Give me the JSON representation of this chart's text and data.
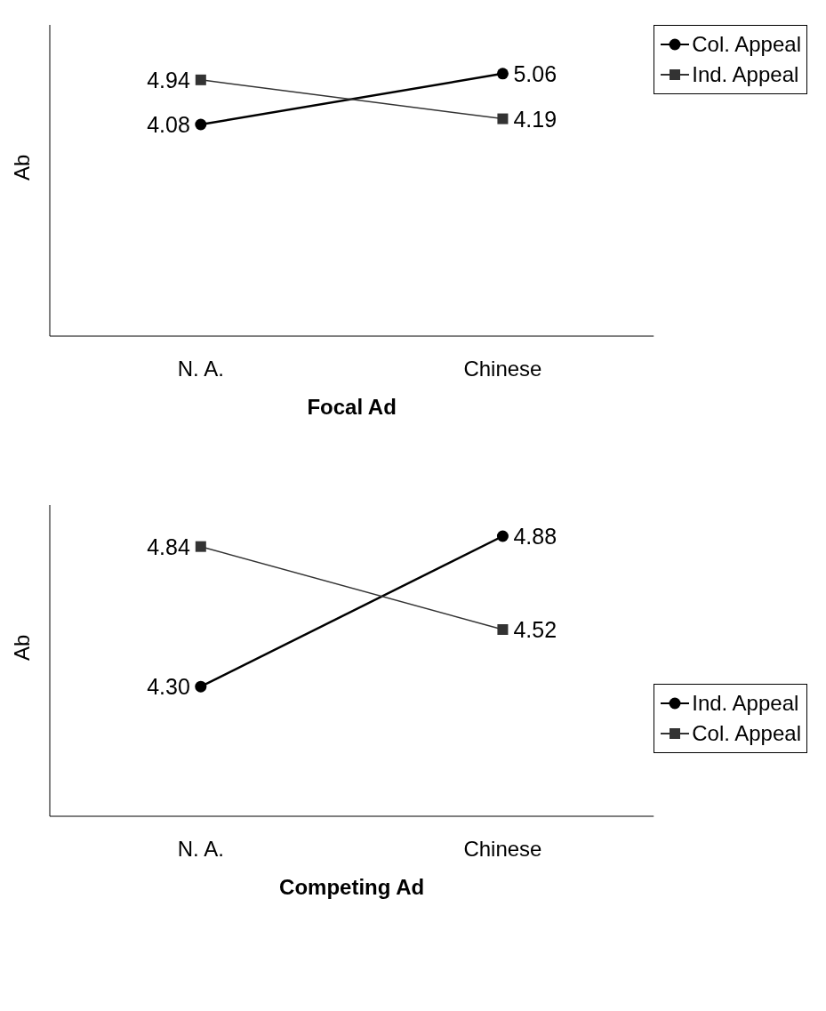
{
  "chart_data": [
    {
      "type": "line",
      "xlabel": "Focal Ad",
      "ylabel": "Ab",
      "categories": [
        "N. A.",
        "Chinese"
      ],
      "ylim": [
        0,
        6
      ],
      "tick_labels": "x",
      "grid": false,
      "legend": "top right",
      "series": [
        {
          "name": "Col. Appeal",
          "color": "#000000",
          "marker": "circle",
          "values": [
            4.08,
            5.06
          ],
          "value_labels": [
            "4.08",
            "5.06"
          ]
        },
        {
          "name": "Ind. Appeal",
          "color": "#333333",
          "marker": "square",
          "values": [
            4.94,
            4.19
          ],
          "value_labels": [
            "4.94",
            "4.19"
          ]
        }
      ]
    },
    {
      "type": "line",
      "xlabel": "Competing Ad",
      "ylabel": "Ab",
      "categories": [
        "N. A.",
        "Chinese"
      ],
      "ylim": [
        3.8,
        5.0
      ],
      "tick_labels": "x",
      "grid": false,
      "legend": "right",
      "series": [
        {
          "name": "Ind. Appeal",
          "color": "#000000",
          "marker": "circle",
          "values": [
            4.3,
            4.88
          ],
          "value_labels": [
            "4.30",
            "4.88"
          ]
        },
        {
          "name": "Col. Appeal",
          "color": "#333333",
          "marker": "square",
          "values": [
            4.84,
            4.52
          ],
          "value_labels": [
            "4.84",
            "4.52"
          ]
        }
      ]
    }
  ]
}
